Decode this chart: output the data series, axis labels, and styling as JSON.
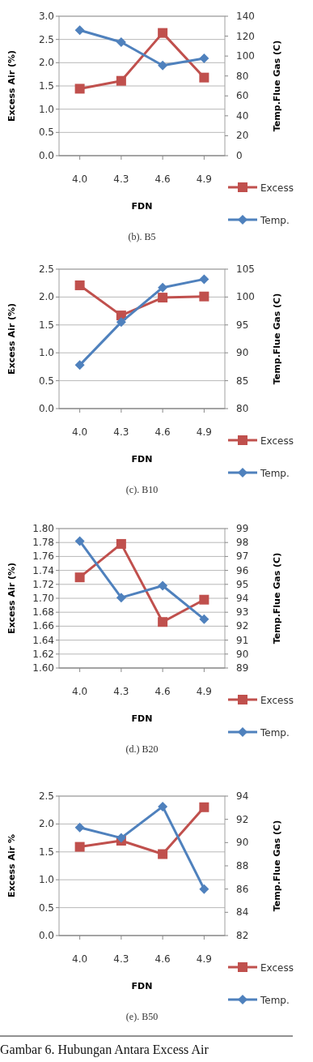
{
  "chart_data": [
    {
      "type": "line",
      "categories": [
        "4.0",
        "4.3",
        "4.6",
        "4.9"
      ],
      "xlabel": "FDN",
      "ylabel": "Excess Air (%)",
      "y2label": "Temp.Flue Gas (C)",
      "series": [
        {
          "name": "Excess",
          "color": "#c0504d",
          "marker": "square",
          "values": [
            1.44,
            1.61,
            2.64,
            1.68
          ]
        },
        {
          "name": "Temp.",
          "color": "#4f81bd",
          "marker": "diamond",
          "axis": "y2",
          "values": [
            126,
            114,
            90.6,
            97.7
          ]
        }
      ],
      "ylim": [
        0,
        3
      ],
      "yticks": [
        {
          "value": 0,
          "label": "0.0"
        },
        0.5,
        {
          "value": 1,
          "label": "1.0"
        },
        1.5,
        {
          "value": 2,
          "label": "2.0"
        },
        2.5,
        {
          "value": 3,
          "label": "3.0"
        }
      ],
      "y2lim": [
        0,
        140
      ],
      "y2ticks": [
        0,
        20,
        40,
        60,
        80,
        100,
        120,
        140
      ],
      "grid": "y",
      "legend": "bottom right",
      "annotations": [
        "(b). B5"
      ]
    },
    {
      "type": "line",
      "categories": [
        "4.0",
        "4.3",
        "4.6",
        "4.9"
      ],
      "xlabel": "FDN",
      "ylabel": "Excess Air (%)",
      "y2label": "Temp.Flue Gas (C)",
      "series": [
        {
          "name": "Excess",
          "color": "#c0504d",
          "marker": "square",
          "values": [
            2.21,
            1.67,
            1.99,
            2.01
          ]
        },
        {
          "name": "Temp.",
          "color": "#4f81bd",
          "marker": "diamond",
          "axis": "y2",
          "values": [
            87.8,
            95.5,
            101.7,
            103.2
          ]
        }
      ],
      "ylim": [
        0,
        2.5
      ],
      "yticks": [
        {
          "value": 0,
          "label": "0.0"
        },
        0.5,
        {
          "value": 1,
          "label": "1.0"
        },
        1.5,
        {
          "value": 2,
          "label": "2.0"
        },
        2.5
      ],
      "y2lim": [
        80,
        105
      ],
      "y2ticks": [
        80,
        85,
        90,
        95,
        100,
        105
      ],
      "grid": "y",
      "legend": "bottom right",
      "annotations": [
        "(c). B10"
      ]
    },
    {
      "type": "line",
      "categories": [
        "4.0",
        "4.3",
        "4.6",
        "4.9"
      ],
      "xlabel": "FDN",
      "ylabel": "Excess Air (%)",
      "y2label": "Temp.Flue Gas (C)",
      "series": [
        {
          "name": "Excess",
          "color": "#c0504d",
          "marker": "square",
          "values": [
            1.73,
            1.778,
            1.666,
            1.698
          ]
        },
        {
          "name": "Temp.",
          "color": "#4f81bd",
          "marker": "diamond",
          "axis": "y2",
          "values": [
            98.1,
            94.05,
            94.9,
            92.5
          ]
        }
      ],
      "ylim": [
        1.6,
        1.8
      ],
      "yticks": [
        {
          "value": 1.6,
          "label": "1.60"
        },
        1.62,
        1.64,
        1.66,
        1.68,
        {
          "value": 1.7,
          "label": "1.70"
        },
        1.72,
        1.74,
        1.76,
        1.78,
        {
          "value": 1.8,
          "label": "1.80"
        }
      ],
      "y2lim": [
        89,
        99
      ],
      "y2ticks": [
        89,
        90,
        91,
        92,
        93,
        94,
        95,
        96,
        97,
        98,
        99
      ],
      "grid": "y",
      "legend": "bottom right",
      "annotations": [
        "(d.) B20"
      ]
    },
    {
      "type": "line",
      "categories": [
        "4.0",
        "4.3",
        "4.6",
        "4.9"
      ],
      "xlabel": "FDN",
      "ylabel": "Excess Air %",
      "y2label": "Temp.Flue Gas (C)",
      "series": [
        {
          "name": "Excess",
          "color": "#c0504d",
          "marker": "square",
          "values": [
            1.59,
            1.7,
            1.46,
            2.3
          ]
        },
        {
          "name": "Temp.",
          "color": "#4f81bd",
          "marker": "diamond",
          "axis": "y2",
          "values": [
            91.3,
            90.4,
            93.1,
            86.0
          ]
        }
      ],
      "ylim": [
        0,
        2.5
      ],
      "yticks": [
        {
          "value": 0,
          "label": "0.0"
        },
        0.5,
        {
          "value": 1,
          "label": "1.0"
        },
        1.5,
        {
          "value": 2,
          "label": "2.0"
        },
        2.5
      ],
      "y2lim": [
        82,
        94
      ],
      "y2ticks": [
        82,
        84,
        86,
        88,
        90,
        92,
        94
      ],
      "grid": "y",
      "legend": "bottom right",
      "annotations": [
        "(e). B50",
        "Gambar 6. Hubungan Antara Excess Air"
      ]
    }
  ]
}
